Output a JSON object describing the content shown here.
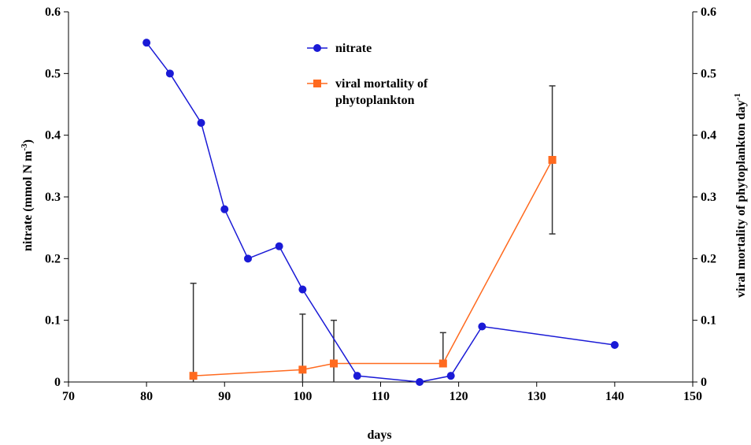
{
  "chart_data": {
    "type": "line",
    "title": "",
    "xlabel": "days",
    "ylabel_left": "nitrate (mmol N m",
    "ylabel_left_sup": "-3",
    "ylabel_left_close": ")",
    "ylabel_right": "viral mortality of phytoplankton day",
    "ylabel_right_sup": "-1",
    "xlim": [
      70,
      150
    ],
    "xticks": [
      70,
      80,
      90,
      100,
      110,
      120,
      130,
      140,
      150
    ],
    "ylim_left": [
      0,
      0.6
    ],
    "yticks_left": [
      "0",
      "0.1",
      "0.2",
      "0.3",
      "0.4",
      "0.5",
      "0.6"
    ],
    "ylim_right": [
      0,
      0.6
    ],
    "yticks_right": [
      "0",
      "0.1",
      "0.2",
      "0.3",
      "0.4",
      "0.5",
      "0.6"
    ],
    "grid": false,
    "legend_position": "top-center",
    "series": [
      {
        "name": "nitrate",
        "axis": "left",
        "color": "#1a1ad6",
        "marker": "circle",
        "x": [
          80,
          83,
          87,
          90,
          93,
          97,
          100,
          107,
          115,
          119,
          123,
          140
        ],
        "y": [
          0.55,
          0.5,
          0.42,
          0.28,
          0.2,
          0.22,
          0.15,
          0.01,
          0.0,
          0.01,
          0.09,
          0.06
        ]
      },
      {
        "name_line1": "viral mortality of",
        "name_line2": "phytoplankton",
        "axis": "right",
        "color": "#ff6a1f",
        "marker": "square",
        "x": [
          86,
          100,
          104,
          118,
          132
        ],
        "y": [
          0.01,
          0.02,
          0.03,
          0.03,
          0.36
        ],
        "error_low": [
          0.0,
          0.0,
          0.0,
          0.03,
          0.24
        ],
        "error_high": [
          0.16,
          0.11,
          0.1,
          0.08,
          0.48
        ]
      }
    ]
  }
}
